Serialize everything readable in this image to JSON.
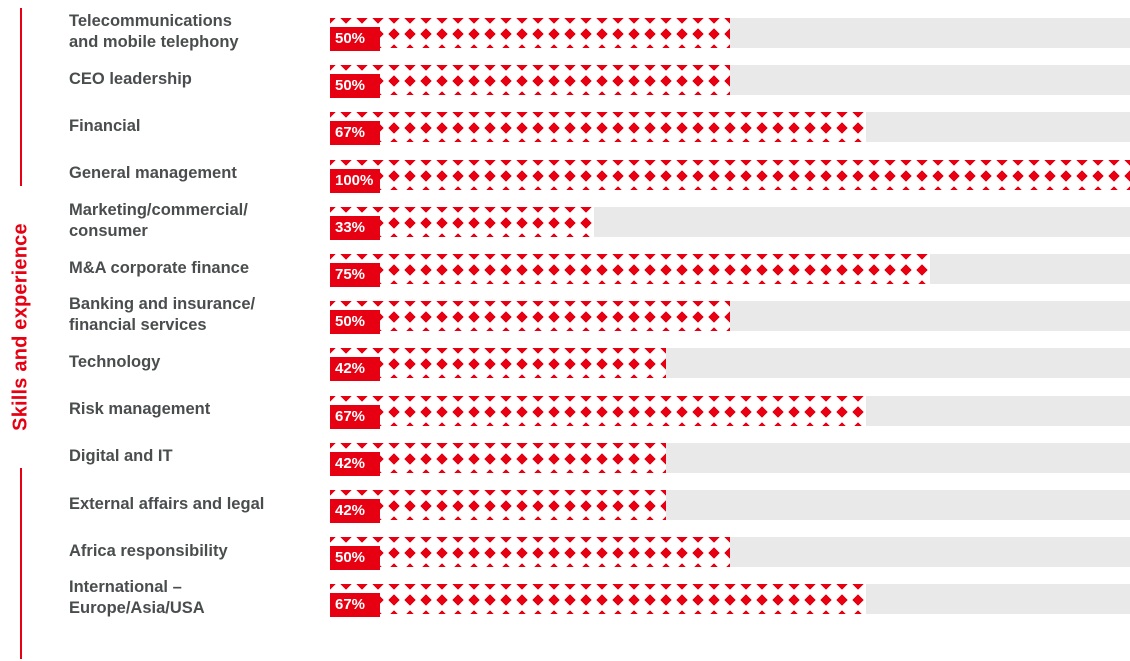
{
  "chart_data": {
    "type": "bar",
    "orientation": "horizontal",
    "title": "Skills and experience",
    "categories": [
      "Telecommunications\nand mobile telephony",
      "CEO leadership",
      "Financial",
      "General management",
      "Marketing/commercial/\nconsumer",
      "M&A corporate finance",
      "Banking and insurance/\nfinancial services",
      "Technology",
      "Risk management",
      "Digital and IT",
      "External affairs and legal",
      "Africa responsibility",
      "International –\nEurope/Asia/USA"
    ],
    "values": [
      50,
      50,
      67,
      100,
      33,
      75,
      50,
      42,
      67,
      42,
      42,
      50,
      67
    ],
    "data_labels": [
      "50%",
      "50%",
      "67%",
      "100%",
      "33%",
      "75%",
      "50%",
      "42%",
      "67%",
      "42%",
      "42%",
      "50%",
      "67%"
    ],
    "xlim": [
      0,
      100
    ],
    "unit": "%",
    "grid": false,
    "legend": "none",
    "colors": {
      "accent": "#e60012",
      "track": "#e9e9e9",
      "label_text": "#4a4d4e",
      "value_text": "#ffffff"
    }
  }
}
